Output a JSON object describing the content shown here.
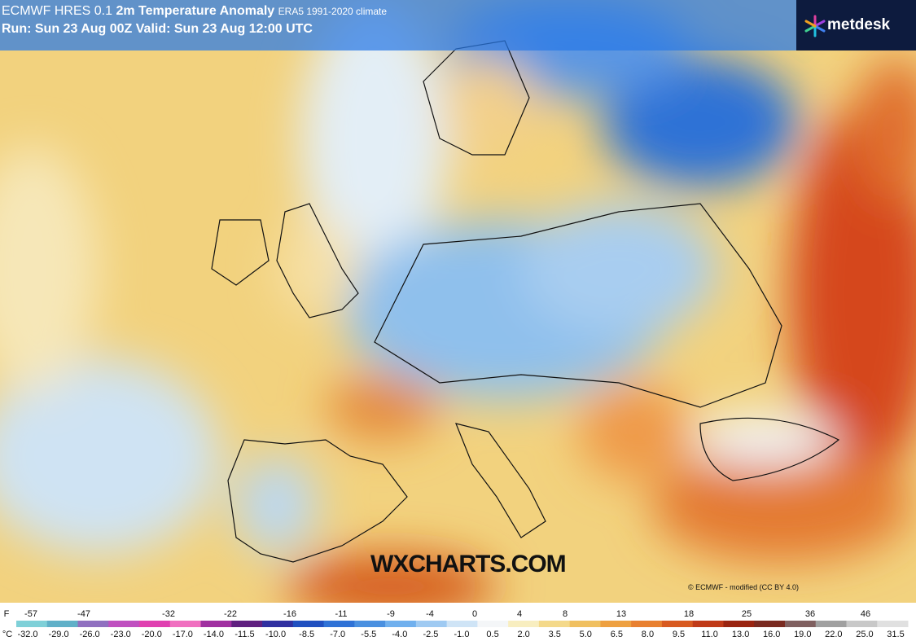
{
  "header": {
    "model": "ECMWF HRES 0.1",
    "title": "2m Temperature Anomaly",
    "climate": "ERA5 1991-2020 climate",
    "run": "Run: Sun 23 Aug 00Z Valid: Sun 23 Aug 12:00 UTC"
  },
  "logo": "metdesk",
  "watermark": "WXCHARTS.COM",
  "credit": "© ECMWF - modified (CC BY 4.0)",
  "legend": {
    "f_unit": "F",
    "f_labels": [
      "-57",
      "-47",
      "-32",
      "-22",
      "-16",
      "-11",
      "-9",
      "-4",
      "0",
      "4",
      "8",
      "13",
      "18",
      "25",
      "36",
      "46"
    ],
    "c_unit": "°C",
    "c_labels": [
      "-32.0",
      "-29.0",
      "-26.0",
      "-23.0",
      "-20.0",
      "-17.0",
      "-14.0",
      "-11.5",
      "-10.0",
      "-8.5",
      "-7.0",
      "-5.5",
      "-4.0",
      "-2.5",
      "-1.0",
      "0.5",
      "2.0",
      "3.5",
      "5.0",
      "6.5",
      "8.0",
      "9.5",
      "11.0",
      "13.0",
      "16.0",
      "19.0",
      "22.0",
      "25.0",
      "31.5"
    ]
  }
}
